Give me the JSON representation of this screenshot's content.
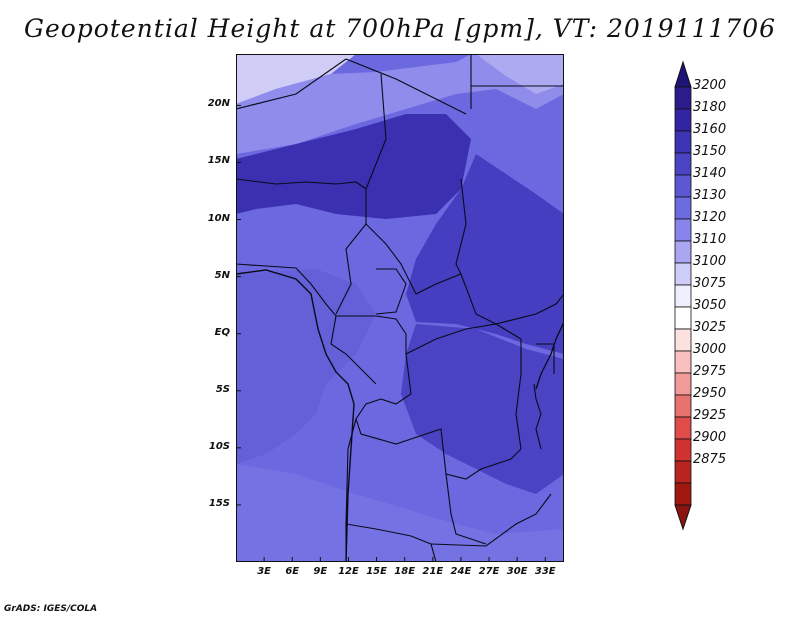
{
  "title": "Geopotential Height at 700hPa [gpm], VT: 2019111706",
  "credit": "GrADS: IGES/COLA",
  "map": {
    "lat_ticks": [
      "20N",
      "15N",
      "10N",
      "5N",
      "EQ",
      "5S",
      "10S",
      "15S"
    ],
    "lon_ticks": [
      "3E",
      "6E",
      "9E",
      "12E",
      "15E",
      "18E",
      "21E",
      "24E",
      "27E",
      "30E",
      "33E"
    ],
    "lat_values": [
      20,
      15,
      10,
      5,
      0,
      -5,
      -10,
      -15
    ],
    "lon_values": [
      3,
      6,
      9,
      12,
      15,
      18,
      21,
      24,
      27,
      30,
      33
    ],
    "lat_range": [
      -20,
      24.5
    ],
    "lon_range": [
      0,
      35
    ]
  },
  "colorbar": {
    "labels": [
      "3200",
      "3180",
      "3160",
      "3150",
      "3140",
      "3130",
      "3120",
      "3110",
      "3100",
      "3075",
      "3050",
      "3025",
      "3000",
      "2975",
      "2950",
      "2925",
      "2900",
      "2875"
    ],
    "colors": [
      "#2a1c8c",
      "#3324a4",
      "#3c34b4",
      "#4a44c4",
      "#5c58d4",
      "#6c6ce0",
      "#8884ec",
      "#aaa6f2",
      "#cecdf8",
      "#eeeefe",
      "#ffffff",
      "#fde0e0",
      "#f9c0bf",
      "#f29a98",
      "#e87270",
      "#df4c4a",
      "#cf3230",
      "#b82420",
      "#a01810"
    ],
    "top_arrow_color": "#1e1478",
    "bottom_arrow_color": "#8c1410"
  }
}
